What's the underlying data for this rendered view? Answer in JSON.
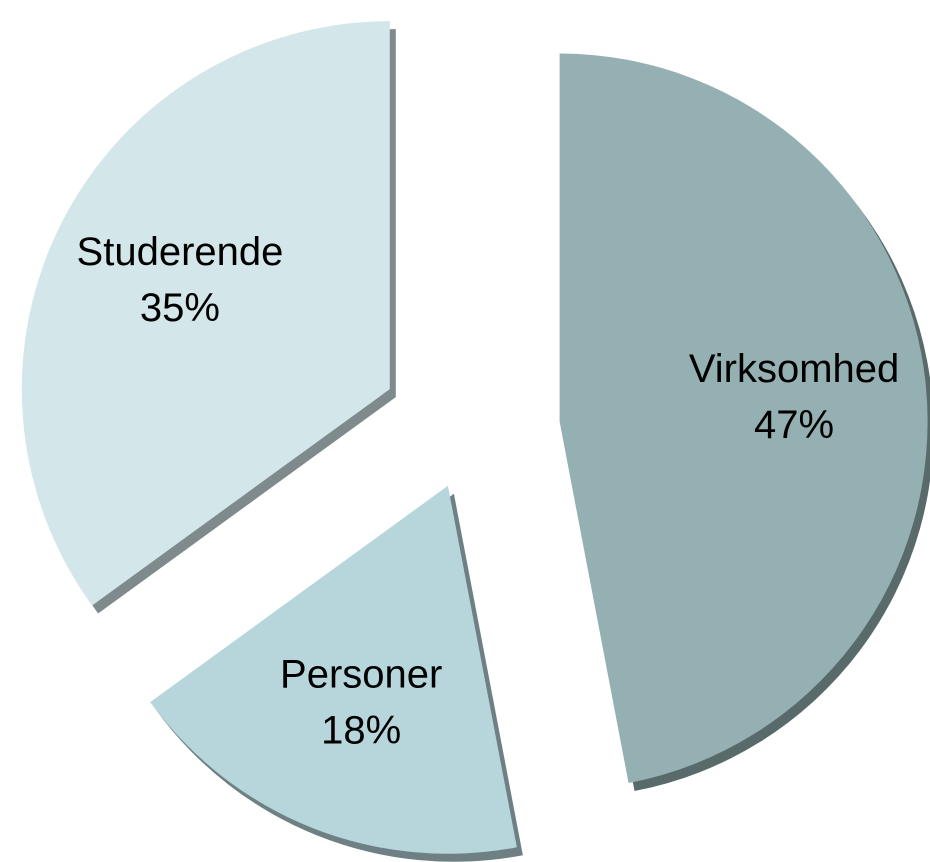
{
  "chart_data": {
    "type": "pie",
    "categories": [
      "Virksomhed",
      "Personer",
      "Studerende"
    ],
    "values": [
      47,
      18,
      35
    ],
    "value_labels": [
      "47%",
      "18%",
      "35%"
    ],
    "colors": [
      "#95b0b2",
      "#b7d6db",
      "#d3e6ea"
    ]
  }
}
